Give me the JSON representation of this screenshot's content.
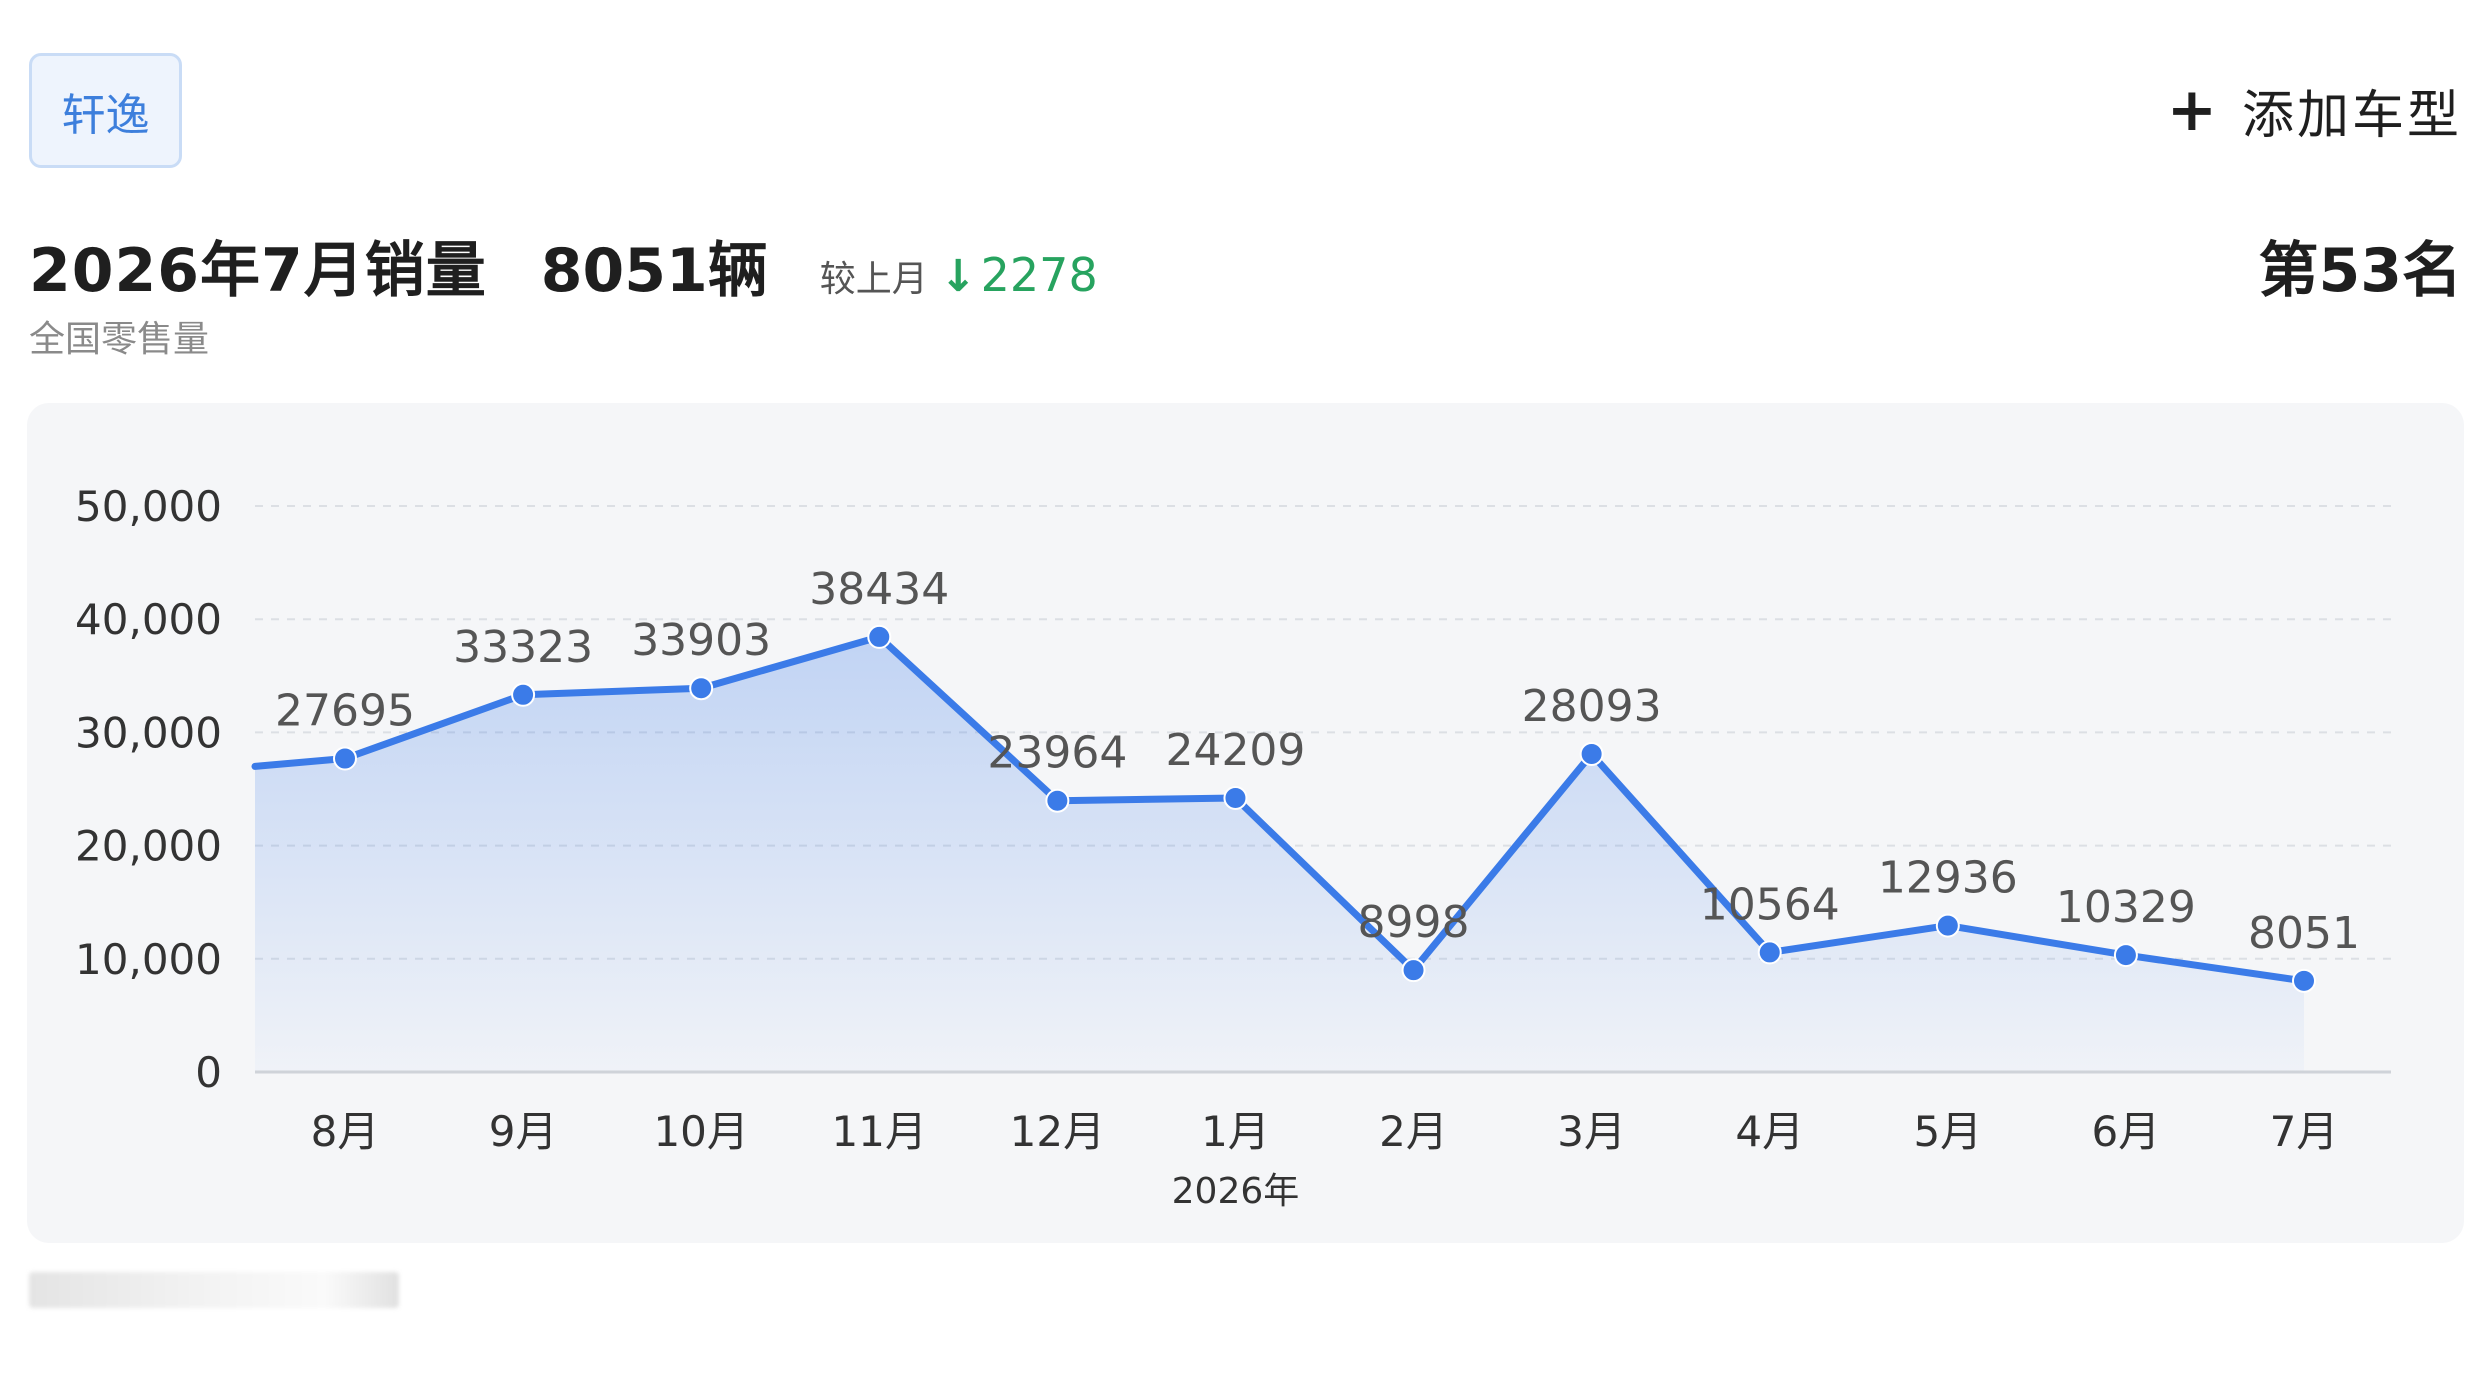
{
  "header": {
    "model_tag": "轩逸",
    "add_button": {
      "icon": "plus-icon",
      "label": "添加车型"
    }
  },
  "summary": {
    "title": "2026年7月销量",
    "value": "8051辆",
    "compare_label": "较上月",
    "trend_icon": "arrow-down-icon",
    "change": "2278",
    "subtitle": "全国零售量",
    "rank": "第53名"
  },
  "colors": {
    "line": "#3b7be8",
    "decrease": "#27a35f",
    "tag_text": "#3d7fdc",
    "card_bg": "#f5f6f8"
  },
  "chart_data": {
    "type": "line",
    "categories": [
      "8月",
      "9月",
      "10月",
      "11月",
      "12月",
      "1月",
      "2月",
      "3月",
      "4月",
      "5月",
      "6月",
      "7月"
    ],
    "year_label": "2026年",
    "year_label_under": "1月",
    "series": [
      {
        "values": [
          27695,
          33323,
          33903,
          38434,
          23964,
          24209,
          8998,
          28093,
          10564,
          12936,
          10329,
          8051
        ]
      }
    ],
    "y_ticks": [
      0,
      10000,
      20000,
      30000,
      40000,
      50000
    ],
    "y_tick_labels": [
      "0",
      "10,000",
      "20,000",
      "30,000",
      "40,000",
      "50,000"
    ],
    "ylim": [
      0,
      50000
    ],
    "grid": true,
    "area_fill": true,
    "line_extends_left_to": 27000
  },
  "footer": {
    "blurred_text_tail": "量"
  }
}
